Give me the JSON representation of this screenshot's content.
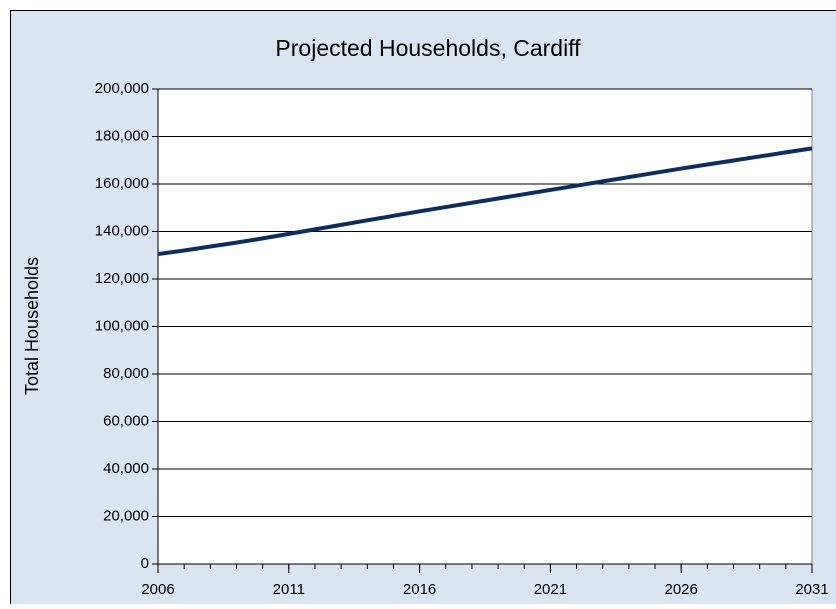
{
  "chart_data": {
    "type": "line",
    "title": "Projected Households, Cardiff",
    "y_label": "Total Households",
    "x": [
      2006,
      2007,
      2008,
      2009,
      2010,
      2011,
      2012,
      2013,
      2014,
      2015,
      2016,
      2017,
      2018,
      2019,
      2020,
      2021,
      2022,
      2023,
      2024,
      2025,
      2026,
      2027,
      2028,
      2029,
      2030,
      2031
    ],
    "series": [
      {
        "name": "Households",
        "color": "#0f2d5c",
        "values": [
          130500,
          132000,
          133700,
          135300,
          137100,
          139000,
          140900,
          142800,
          144700,
          146600,
          148500,
          150300,
          152100,
          153900,
          155700,
          157500,
          159300,
          161100,
          162900,
          164700,
          166500,
          168200,
          169900,
          171600,
          173300,
          175000
        ]
      }
    ],
    "xlim": [
      2006,
      2031
    ],
    "xticks": [
      2006,
      2011,
      2016,
      2021,
      2026,
      2031
    ],
    "ylim": [
      0,
      200000
    ],
    "yticks": [
      0,
      {
        "value": 20000,
        "label": "20,000"
      },
      {
        "value": 40000,
        "label": "40,000"
      },
      {
        "value": 60000,
        "label": "60,000"
      },
      {
        "value": 80000,
        "label": "80,000"
      },
      {
        "value": 100000,
        "label": "100,000"
      },
      {
        "value": 120000,
        "label": "120,000"
      },
      {
        "value": 140000,
        "label": "140,000"
      },
      {
        "value": 160000,
        "label": "160,000"
      },
      {
        "value": 180000,
        "label": "180,000"
      },
      {
        "value": 200000,
        "label": "200,000"
      }
    ],
    "grid": true
  }
}
